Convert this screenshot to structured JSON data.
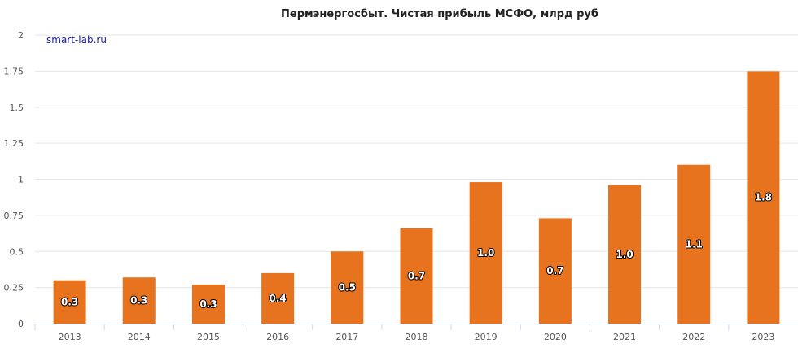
{
  "chart_data": {
    "type": "bar",
    "title": "Пермэнергосбыт. Чистая прибыль МСФО, млрд руб",
    "watermark": "smart-lab.ru",
    "categories": [
      "2013",
      "2014",
      "2015",
      "2016",
      "2017",
      "2018",
      "2019",
      "2020",
      "2021",
      "2022",
      "2023"
    ],
    "values": [
      0.3,
      0.32,
      0.27,
      0.35,
      0.5,
      0.66,
      0.98,
      0.73,
      0.96,
      1.1,
      1.75
    ],
    "data_labels": [
      "0.3",
      "0.3",
      "0.3",
      "0.4",
      "0.5",
      "0.7",
      "1.0",
      "0.7",
      "1.0",
      "1.1",
      "1.8"
    ],
    "y_ticks": [
      0,
      0.25,
      0.5,
      0.75,
      1,
      1.25,
      1.5,
      1.75,
      2
    ],
    "y_tick_labels": [
      "0",
      "0.25",
      "0.5",
      "0.75",
      "1",
      "1.25",
      "1.5",
      "1.75",
      "2"
    ],
    "ylim": [
      0,
      2
    ],
    "xlabel": "",
    "ylabel": "",
    "grid": true,
    "legend": "none",
    "bar_color": "#e8731f",
    "grid_color": "#e6e6e6",
    "axis_color": "#ccd6eb"
  }
}
